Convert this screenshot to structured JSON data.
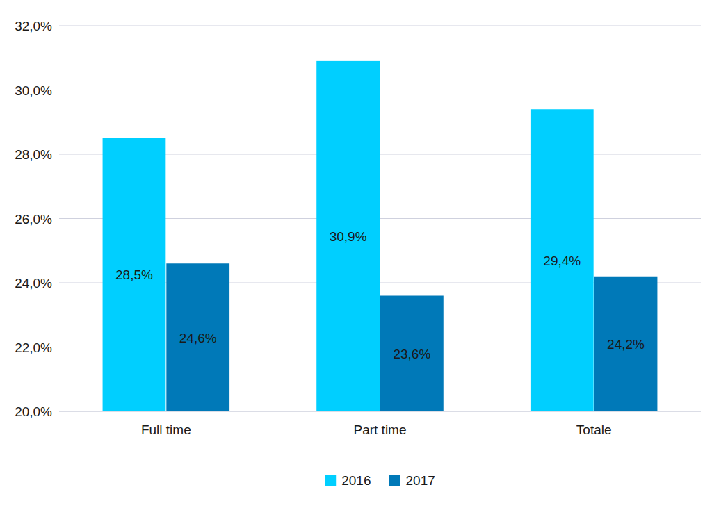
{
  "chart_data": {
    "type": "bar",
    "categories": [
      "Full time",
      "Part time",
      "Totale"
    ],
    "series": [
      {
        "name": "2016",
        "color": "#00cfff",
        "values": [
          28.5,
          30.9,
          29.4
        ],
        "value_labels": [
          "28,5%",
          "30,9%",
          "29,4%"
        ]
      },
      {
        "name": "2017",
        "color": "#0079b8",
        "values": [
          24.6,
          23.6,
          24.2
        ],
        "value_labels": [
          "24,6%",
          "23,6%",
          "24,2%"
        ]
      }
    ],
    "ylim": [
      20,
      32
    ],
    "yticks": [
      {
        "value": 20,
        "label": "20,0%"
      },
      {
        "value": 22,
        "label": "22,0%"
      },
      {
        "value": 24,
        "label": "24,0%"
      },
      {
        "value": 26,
        "label": "26,0%"
      },
      {
        "value": 28,
        "label": "28,0%"
      },
      {
        "value": 30,
        "label": "30,0%"
      },
      {
        "value": 32,
        "label": "32,0%"
      }
    ],
    "grid": true,
    "data_labels": true,
    "legend": "bottom"
  }
}
